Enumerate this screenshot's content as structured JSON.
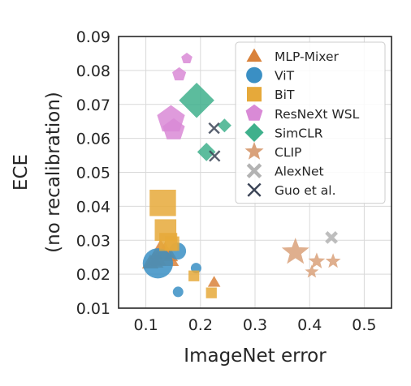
{
  "chart_data": {
    "type": "scatter",
    "xlabel": "ImageNet error",
    "ylabel": [
      "ECE",
      "(no recalibration)"
    ],
    "xlim": [
      0.05,
      0.55
    ],
    "ylim": [
      0.01,
      0.09
    ],
    "xticks": [
      0.1,
      0.2,
      0.3,
      0.4,
      0.5
    ],
    "yticks": [
      0.01,
      0.02,
      0.03,
      0.04,
      0.05,
      0.06,
      0.07,
      0.08,
      0.09
    ],
    "xtick_labels": [
      "0.1",
      "0.2",
      "0.3",
      "0.4",
      "0.5"
    ],
    "ytick_labels": [
      "0.01",
      "0.02",
      "0.03",
      "0.04",
      "0.05",
      "0.06",
      "0.07",
      "0.08",
      "0.09"
    ],
    "grid": true,
    "legend_position": "top-right",
    "series": [
      {
        "name": "MLP-Mixer",
        "marker": "triangle",
        "color": "#d9823b",
        "points": [
          [
            0.135,
            0.0255,
            2.2
          ],
          [
            0.127,
            0.027,
            1.8
          ],
          [
            0.115,
            0.024,
            1.5
          ],
          [
            0.108,
            0.0235,
            1.3
          ],
          [
            0.121,
            0.0245,
            1.4
          ],
          [
            0.145,
            0.0255,
            1.2
          ],
          [
            0.225,
            0.0177,
            1.0
          ]
        ]
      },
      {
        "name": "ViT",
        "marker": "circle",
        "color": "#3a8fc4",
        "points": [
          [
            0.122,
            0.0232,
            2.3
          ],
          [
            0.158,
            0.0268,
            1.3
          ],
          [
            0.192,
            0.0218,
            0.8
          ],
          [
            0.159,
            0.0148,
            0.8
          ]
        ]
      },
      {
        "name": "BiT",
        "marker": "square",
        "color": "#e6a93a",
        "points": [
          [
            0.131,
            0.041,
            2.2
          ],
          [
            0.136,
            0.033,
            1.8
          ],
          [
            0.141,
            0.0295,
            1.5
          ],
          [
            0.148,
            0.029,
            1.2
          ],
          [
            0.188,
            0.0195,
            0.9
          ],
          [
            0.22,
            0.0145,
            0.9
          ]
        ]
      },
      {
        "name": "ResNeXt WSL",
        "marker": "pentagon",
        "color": "#d98ad6",
        "points": [
          [
            0.146,
            0.0655,
            2.0
          ],
          [
            0.151,
            0.0625,
            1.6
          ],
          [
            0.161,
            0.0788,
            1.0
          ],
          [
            0.175,
            0.0835,
            0.8
          ]
        ]
      },
      {
        "name": "SimCLR",
        "marker": "diamond",
        "color": "#3fb08c",
        "points": [
          [
            0.193,
            0.0712,
            2.3
          ],
          [
            0.211,
            0.056,
            1.2
          ],
          [
            0.244,
            0.0638,
            0.9
          ]
        ]
      },
      {
        "name": "CLIP",
        "marker": "star",
        "color": "#d9a17a",
        "points": [
          [
            0.374,
            0.0265,
            1.8
          ],
          [
            0.413,
            0.0238,
            1.1
          ],
          [
            0.443,
            0.0238,
            1.0
          ],
          [
            0.404,
            0.0207,
            0.9
          ]
        ]
      },
      {
        "name": "AlexNet",
        "marker": "x-thick",
        "color": "#b3b3b3",
        "points": [
          [
            0.44,
            0.0308,
            1.0
          ]
        ]
      },
      {
        "name": "Guo et al.",
        "marker": "x-thin",
        "color": "#3b4456",
        "points": [
          [
            0.225,
            0.063,
            1.0
          ],
          [
            0.226,
            0.0548,
            1.0
          ]
        ]
      }
    ]
  }
}
